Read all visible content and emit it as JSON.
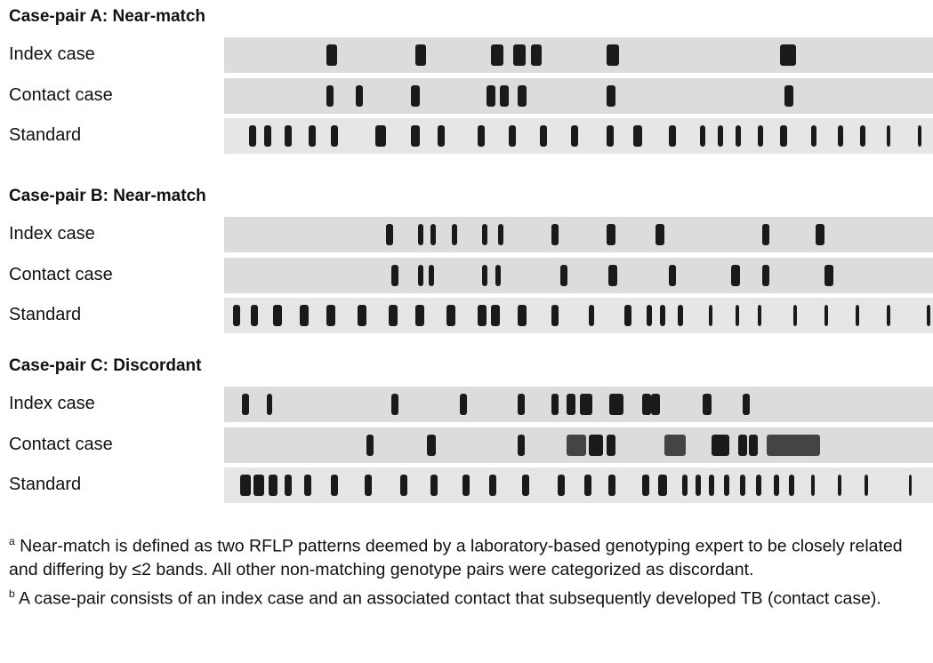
{
  "groups": [
    {
      "title": "Case-pair A: Near-match",
      "rows": [
        "Index case",
        "Contact case",
        "Standard"
      ]
    },
    {
      "title": "Case-pair B: Near-match",
      "rows": [
        "Index case",
        "Contact case",
        "Standard"
      ]
    },
    {
      "title": "Case-pair C: Discordant",
      "rows": [
        "Index case",
        "Contact case",
        "Standard"
      ]
    }
  ],
  "footnotes": [
    {
      "marker": "a",
      "text": "Near-match is defined as two RFLP patterns deemed by a laboratory-based genotyping expert to be closely related and differing by ≤2 bands. All other non-matching genotype pairs were categorized as discordant."
    },
    {
      "marker": "b",
      "text": "A case-pair consists of an index case and an associated contact that subsequently developed TB (contact case)."
    }
  ]
}
